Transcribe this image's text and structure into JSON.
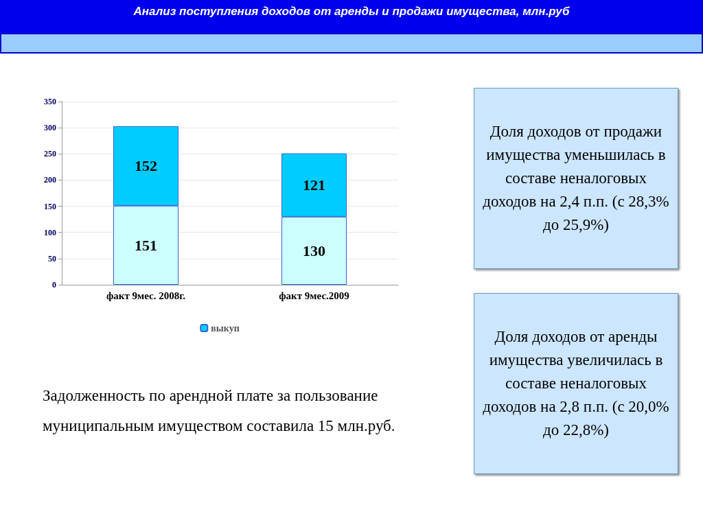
{
  "chart_data": {
    "type": "bar",
    "title": "Анализ поступления доходов от аренды и продажи имущества, млн.руб",
    "categories": [
      "факт 9мес. 2008г.",
      "факт 9мес.2009"
    ],
    "series": [
      {
        "color": "#ccffff",
        "values": [
          151,
          130
        ]
      },
      {
        "name": "выкуп",
        "color": "#00ccff",
        "values": [
          152,
          121
        ]
      }
    ],
    "stacked": true,
    "data_labels": true,
    "ylim": [
      0,
      350
    ],
    "yticks": [
      0,
      50,
      100,
      150,
      200,
      250,
      300,
      350
    ],
    "grid": "y",
    "legend": "bottom",
    "annotations": [
      "Доля доходов от продажи имущества уменьшилась в составе неналоговых доходов на 2,4 п.п. (с 28,3% до 25,9%)",
      "Доля доходов от аренды имущества увеличилась в составе неналоговых доходов на 2,8 п.п. (с 20,0% до 22,8%)",
      "Задолженность по арендной плате за пользование муниципальным имуществом составила 15 млн.руб."
    ]
  }
}
